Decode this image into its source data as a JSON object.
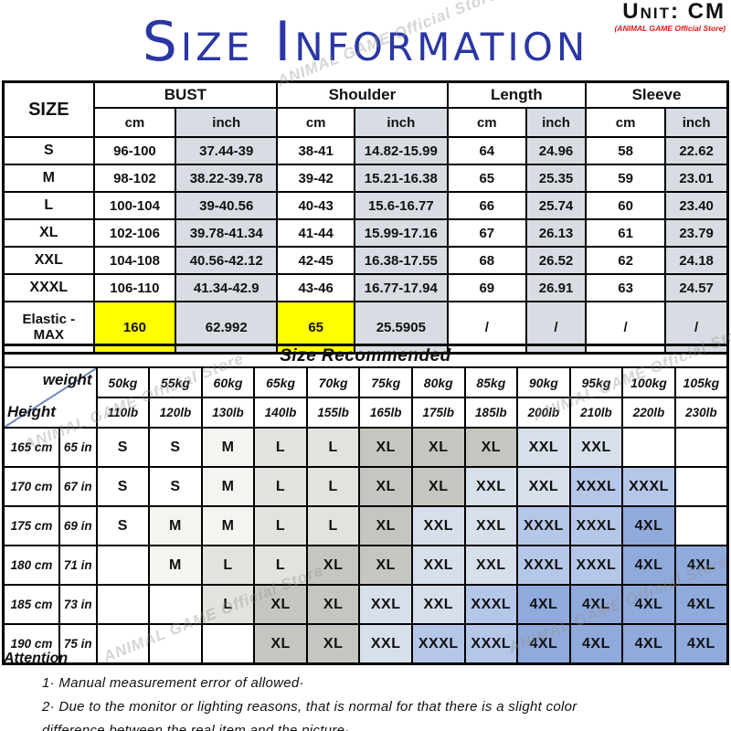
{
  "header": {
    "unit_label": "Unit: CM",
    "store_label": "(ANIMAL GAME Official Store)",
    "title": "Size Information"
  },
  "watermark": {
    "text": "ANIMAL GAME Official Store"
  },
  "size_table": {
    "size_col_label": "SIZE",
    "groups": [
      {
        "label": "BUST"
      },
      {
        "label": "Shoulder"
      },
      {
        "label": "Length"
      },
      {
        "label": "Sleeve"
      }
    ],
    "unit_cm": "cm",
    "unit_inch": "inch",
    "rows": [
      {
        "size": "S",
        "cells": [
          "96-100",
          "37.44-39",
          "38-41",
          "14.82-15.99",
          "64",
          "24.96",
          "58",
          "22.62"
        ]
      },
      {
        "size": "M",
        "cells": [
          "98-102",
          "38.22-39.78",
          "39-42",
          "15.21-16.38",
          "65",
          "25.35",
          "59",
          "23.01"
        ]
      },
      {
        "size": "L",
        "cells": [
          "100-104",
          "39-40.56",
          "40-43",
          "15.6-16.77",
          "66",
          "25.74",
          "60",
          "23.40"
        ]
      },
      {
        "size": "XL",
        "cells": [
          "102-106",
          "39.78-41.34",
          "41-44",
          "15.99-17.16",
          "67",
          "26.13",
          "61",
          "23.79"
        ]
      },
      {
        "size": "XXL",
        "cells": [
          "104-108",
          "40.56-42.12",
          "42-45",
          "16.38-17.55",
          "68",
          "26.52",
          "62",
          "24.18"
        ]
      },
      {
        "size": "XXXL",
        "cells": [
          "106-110",
          "41.34-42.9",
          "43-46",
          "16.77-17.94",
          "69",
          "26.91",
          "63",
          "24.57"
        ]
      },
      {
        "size": "Elastic - MAX",
        "elastic": true,
        "highlight": [
          0,
          2
        ],
        "cells": [
          "160",
          "62.992",
          "65",
          "25.5905",
          "/",
          "/",
          "/",
          "/"
        ]
      }
    ]
  },
  "recommend_table": {
    "title": "Size Recommended",
    "weight_label": "weight",
    "height_label": "Height",
    "weights_kg": [
      "50kg",
      "55kg",
      "60kg",
      "65kg",
      "70kg",
      "75kg",
      "80kg",
      "85kg",
      "90kg",
      "95kg",
      "100kg",
      "105kg"
    ],
    "weights_lb": [
      "110lb",
      "120lb",
      "130lb",
      "140lb",
      "155lb",
      "165lb",
      "175lb",
      "185lb",
      "200lb",
      "210lb",
      "220lb",
      "230lb"
    ],
    "rows": [
      {
        "height_cm": "165 cm",
        "height_in": "65 in",
        "sizes": [
          "S",
          "S",
          "M",
          "L",
          "L",
          "XL",
          "XL",
          "XL",
          "XXL",
          "XXL",
          "",
          ""
        ]
      },
      {
        "height_cm": "170 cm",
        "height_in": "67 in",
        "sizes": [
          "S",
          "S",
          "M",
          "L",
          "L",
          "XL",
          "XL",
          "XXL",
          "XXL",
          "XXXL",
          "XXXL",
          ""
        ]
      },
      {
        "height_cm": "175 cm",
        "height_in": "69 in",
        "sizes": [
          "S",
          "M",
          "M",
          "L",
          "L",
          "XL",
          "XXL",
          "XXL",
          "XXXL",
          "XXXL",
          "4XL",
          ""
        ]
      },
      {
        "height_cm": "180 cm",
        "height_in": "71 in",
        "sizes": [
          "",
          "M",
          "L",
          "L",
          "XL",
          "XL",
          "XXL",
          "XXL",
          "XXXL",
          "XXXL",
          "4XL",
          "4XL"
        ]
      },
      {
        "height_cm": "185 cm",
        "height_in": "73 in",
        "sizes": [
          "",
          "",
          "L",
          "XL",
          "XL",
          "XXL",
          "XXL",
          "XXXL",
          "4XL",
          "4XL",
          "4XL",
          "4XL"
        ]
      },
      {
        "height_cm": "190 cm",
        "height_in": "75 in",
        "sizes": [
          "",
          "",
          "",
          "XL",
          "XL",
          "XXL",
          "XXXL",
          "XXXL",
          "4XL",
          "4XL",
          "4XL",
          "4XL"
        ]
      }
    ]
  },
  "attention": {
    "title": "Attention",
    "lines": [
      "1· Manual measurement error of allowed·",
      "2·  Due to the monitor or lighting reasons, that is normal for that there is a slight color",
      "difference between the real item and the picture·"
    ]
  },
  "colors": {
    "title_blue": "#2b36a5",
    "store_red": "#e01818",
    "inch_header_bg": "#d8dde4",
    "elastic_yellow": "#ffff00",
    "size_S": "#ffffff",
    "size_M": "#f4f4f0",
    "size_L": "#e2e2de",
    "size_XL": "#c6c6c0",
    "size_XXL": "#d7dfea",
    "size_XXXL": "#b5c7e9",
    "size_4XL": "#90aadc"
  }
}
